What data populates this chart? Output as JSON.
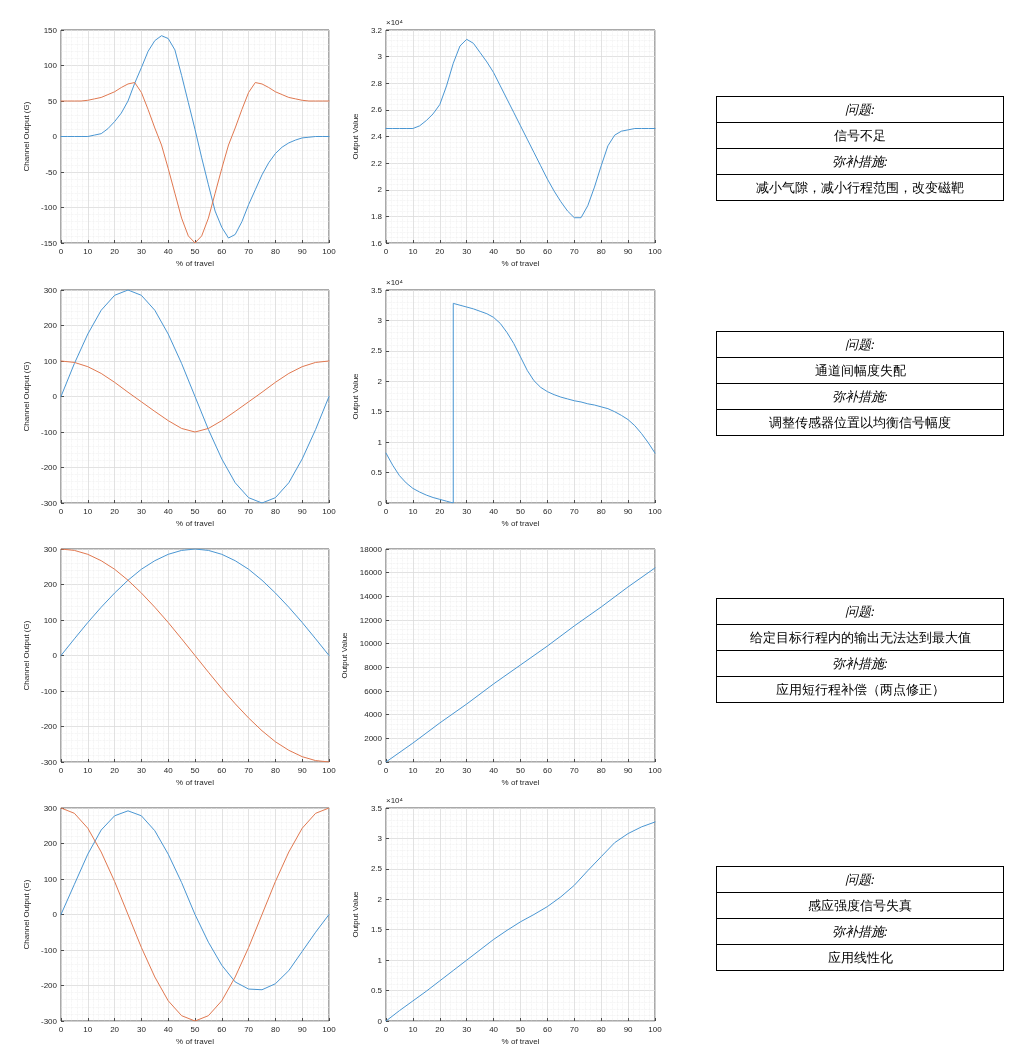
{
  "chart_data": [
    {
      "type": "line",
      "xlabel": "% of travel",
      "ylabel": "Channel Output (G)",
      "x": [
        0,
        2.5,
        5,
        7.5,
        10,
        12.5,
        15,
        17.5,
        20,
        22.5,
        25,
        27.5,
        30,
        32.5,
        35,
        37.5,
        40,
        42.5,
        45,
        47.5,
        50,
        52.5,
        55,
        57.5,
        60,
        62.5,
        65,
        67.5,
        70,
        72.5,
        75,
        77.5,
        80,
        82.5,
        85,
        87.5,
        90,
        92.5,
        95,
        97.5,
        100
      ],
      "series": [
        {
          "color": "#4a96d2",
          "values": [
            0,
            0,
            0,
            0,
            0,
            2,
            4,
            11,
            21,
            33,
            50,
            75,
            97,
            120,
            135,
            142,
            138,
            122,
            86,
            48,
            10,
            -30,
            -68,
            -105,
            -128,
            -143,
            -138,
            -120,
            -96,
            -75,
            -54,
            -37,
            -24,
            -15,
            -9,
            -5,
            -2,
            -1,
            0,
            0,
            0
          ]
        },
        {
          "color": "#e07850",
          "values": [
            50,
            50,
            50,
            50,
            51,
            53,
            55,
            59,
            63,
            69,
            74,
            76,
            62,
            38,
            12,
            -12,
            -45,
            -80,
            -115,
            -140,
            -150,
            -140,
            -115,
            -80,
            -45,
            -12,
            12,
            38,
            62,
            76,
            74,
            69,
            63,
            59,
            55,
            53,
            51,
            50,
            50,
            50,
            50
          ]
        }
      ],
      "xlim": [
        0,
        100
      ],
      "xticks": [
        0,
        10,
        20,
        30,
        40,
        50,
        60,
        70,
        80,
        90,
        100
      ],
      "ylim": [
        -150,
        150
      ],
      "yticks": [
        -150,
        -100,
        -50,
        0,
        50,
        100,
        150
      ],
      "grid": true
    },
    {
      "type": "line",
      "xlabel": "% of travel",
      "ylabel": "Output Value",
      "annotations": [
        "×10⁴"
      ],
      "x": [
        0,
        2.5,
        5,
        7.5,
        10,
        12.5,
        15,
        17.5,
        20,
        22.5,
        25,
        27.5,
        30,
        32.5,
        35,
        37.5,
        40,
        42.5,
        45,
        47.5,
        50,
        52.5,
        55,
        57.5,
        60,
        62.5,
        65,
        67.5,
        70,
        72.5,
        75,
        77.5,
        80,
        82.5,
        85,
        87.5,
        90,
        92.5,
        95,
        97.5,
        100
      ],
      "series": [
        {
          "color": "#4a96d2",
          "values": [
            2.46,
            2.46,
            2.46,
            2.46,
            2.46,
            2.48,
            2.52,
            2.57,
            2.64,
            2.78,
            2.95,
            3.08,
            3.13,
            3.1,
            3.03,
            2.96,
            2.88,
            2.78,
            2.68,
            2.58,
            2.48,
            2.38,
            2.28,
            2.18,
            2.08,
            1.99,
            1.91,
            1.84,
            1.79,
            1.79,
            1.88,
            2.02,
            2.18,
            2.33,
            2.41,
            2.44,
            2.45,
            2.46,
            2.46,
            2.46,
            2.46
          ]
        }
      ],
      "xlim": [
        0,
        100
      ],
      "xticks": [
        0,
        10,
        20,
        30,
        40,
        50,
        60,
        70,
        80,
        90,
        100
      ],
      "ylim": [
        1.6,
        3.2
      ],
      "yticks": [
        1.6,
        1.8,
        2,
        2.2,
        2.4,
        2.6,
        2.8,
        3,
        3.2
      ],
      "grid": true
    },
    {
      "type": "other",
      "annotations": [
        "问题:",
        "信号不足",
        "弥补措施:",
        "减小气隙，减小行程范围，改变磁靶"
      ]
    },
    {
      "type": "line",
      "xlabel": "% of travel",
      "ylabel": "Channel Output (G)",
      "x": [
        0,
        5,
        10,
        15,
        20,
        25,
        30,
        35,
        40,
        45,
        50,
        55,
        60,
        65,
        70,
        75,
        80,
        85,
        90,
        95,
        100
      ],
      "series": [
        {
          "color": "#4a96d2",
          "values": [
            0,
            93,
            176,
            243,
            285,
            300,
            285,
            243,
            176,
            93,
            0,
            -93,
            -176,
            -243,
            -285,
            -300,
            -285,
            -243,
            -176,
            -93,
            0
          ]
        },
        {
          "color": "#e07850",
          "values": [
            100,
            96,
            84,
            65,
            40,
            12,
            -15,
            -42,
            -68,
            -90,
            -100,
            -90,
            -68,
            -42,
            -15,
            12,
            40,
            65,
            84,
            96,
            100
          ]
        }
      ],
      "xlim": [
        0,
        100
      ],
      "xticks": [
        0,
        10,
        20,
        30,
        40,
        50,
        60,
        70,
        80,
        90,
        100
      ],
      "ylim": [
        -300,
        300
      ],
      "yticks": [
        -300,
        -200,
        -100,
        0,
        100,
        200,
        300
      ],
      "grid": true
    },
    {
      "type": "line",
      "xlabel": "% of travel",
      "ylabel": "Output Value",
      "annotations": [
        "×10⁴"
      ],
      "x": [
        0,
        2.5,
        5,
        7.5,
        10,
        12.5,
        15,
        17.5,
        20,
        22.5,
        25,
        25,
        27.5,
        30,
        32.5,
        35,
        37.5,
        40,
        42.5,
        45,
        47.5,
        50,
        52.5,
        55,
        57.5,
        60,
        62.5,
        65,
        67.5,
        70,
        72.5,
        75,
        77.5,
        80,
        82.5,
        85,
        87.5,
        90,
        92.5,
        95,
        97.5,
        100
      ],
      "series": [
        {
          "color": "#4a96d2",
          "values": [
            0.82,
            0.62,
            0.45,
            0.33,
            0.24,
            0.18,
            0.13,
            0.09,
            0.06,
            0.03,
            0,
            3.28,
            3.25,
            3.22,
            3.19,
            3.15,
            3.11,
            3.05,
            2.95,
            2.8,
            2.62,
            2.4,
            2.18,
            2.01,
            1.9,
            1.83,
            1.78,
            1.74,
            1.71,
            1.68,
            1.66,
            1.63,
            1.61,
            1.58,
            1.55,
            1.5,
            1.44,
            1.37,
            1.27,
            1.14,
            0.99,
            0.82
          ]
        }
      ],
      "xlim": [
        0,
        100
      ],
      "xticks": [
        0,
        10,
        20,
        30,
        40,
        50,
        60,
        70,
        80,
        90,
        100
      ],
      "ylim": [
        0,
        3.5
      ],
      "yticks": [
        0,
        0.5,
        1,
        1.5,
        2,
        2.5,
        3,
        3.5
      ],
      "grid": true
    },
    {
      "type": "other",
      "annotations": [
        "问题:",
        "通道间幅度失配",
        "弥补措施:",
        "调整传感器位置以均衡信号幅度"
      ]
    },
    {
      "type": "line",
      "xlabel": "% of travel",
      "ylabel": "Channel Output (G)",
      "x": [
        0,
        5,
        10,
        15,
        20,
        25,
        30,
        35,
        40,
        45,
        50,
        55,
        60,
        65,
        70,
        75,
        80,
        85,
        90,
        95,
        100
      ],
      "series": [
        {
          "color": "#4a96d2",
          "values": [
            0,
            47,
            93,
            136,
            176,
            212,
            243,
            267,
            285,
            296,
            300,
            296,
            285,
            267,
            243,
            212,
            176,
            136,
            93,
            47,
            0
          ]
        },
        {
          "color": "#e07850",
          "values": [
            300,
            296,
            285,
            267,
            243,
            212,
            176,
            136,
            93,
            47,
            0,
            -47,
            -93,
            -136,
            -176,
            -212,
            -243,
            -267,
            -285,
            -296,
            -300
          ]
        }
      ],
      "xlim": [
        0,
        100
      ],
      "xticks": [
        0,
        10,
        20,
        30,
        40,
        50,
        60,
        70,
        80,
        90,
        100
      ],
      "ylim": [
        -300,
        300
      ],
      "yticks": [
        -300,
        -200,
        -100,
        0,
        100,
        200,
        300
      ],
      "grid": true
    },
    {
      "type": "line",
      "xlabel": "% of travel",
      "ylabel": "Output Value",
      "x": [
        0,
        10,
        20,
        30,
        40,
        50,
        60,
        70,
        80,
        90,
        100
      ],
      "series": [
        {
          "color": "#4a96d2",
          "values": [
            0,
            1600,
            3300,
            4900,
            6600,
            8200,
            9800,
            11500,
            13100,
            14800,
            16400
          ]
        }
      ],
      "xlim": [
        0,
        100
      ],
      "xticks": [
        0,
        10,
        20,
        30,
        40,
        50,
        60,
        70,
        80,
        90,
        100
      ],
      "ylim": [
        0,
        18000
      ],
      "yticks": [
        0,
        2000,
        4000,
        6000,
        8000,
        10000,
        12000,
        14000,
        16000,
        18000
      ],
      "grid": true
    },
    {
      "type": "other",
      "annotations": [
        "问题:",
        "给定目标行程内的输出无法达到最大值",
        "弥补措施:",
        "应用短行程补偿（两点修正）"
      ]
    },
    {
      "type": "line",
      "xlabel": "% of travel",
      "ylabel": "Channel Output (G)",
      "x": [
        0,
        5,
        10,
        15,
        20,
        25,
        30,
        35,
        40,
        45,
        50,
        55,
        60,
        65,
        70,
        75,
        80,
        85,
        90,
        95,
        100
      ],
      "series": [
        {
          "color": "#4a96d2",
          "values": [
            0,
            85,
            170,
            238,
            278,
            292,
            278,
            236,
            170,
            90,
            0,
            -78,
            -143,
            -190,
            -210,
            -212,
            -195,
            -158,
            -104,
            -50,
            0
          ]
        },
        {
          "color": "#e07850",
          "values": [
            300,
            285,
            243,
            176,
            93,
            0,
            -93,
            -176,
            -243,
            -285,
            -300,
            -285,
            -243,
            -176,
            -93,
            0,
            93,
            176,
            243,
            285,
            300
          ]
        }
      ],
      "xlim": [
        0,
        100
      ],
      "xticks": [
        0,
        10,
        20,
        30,
        40,
        50,
        60,
        70,
        80,
        90,
        100
      ],
      "ylim": [
        -300,
        300
      ],
      "yticks": [
        -300,
        -200,
        -100,
        0,
        100,
        200,
        300
      ],
      "grid": true
    },
    {
      "type": "line",
      "xlabel": "% of travel",
      "ylabel": "Output Value",
      "annotations": [
        "×10⁴"
      ],
      "x": [
        0,
        5,
        10,
        15,
        20,
        25,
        30,
        35,
        40,
        45,
        50,
        55,
        60,
        65,
        70,
        75,
        80,
        85,
        90,
        95,
        100
      ],
      "series": [
        {
          "color": "#4a96d2",
          "values": [
            0,
            0.17,
            0.33,
            0.49,
            0.66,
            0.83,
            1,
            1.17,
            1.34,
            1.49,
            1.63,
            1.75,
            1.88,
            2.04,
            2.23,
            2.47,
            2.7,
            2.93,
            3.08,
            3.19,
            3.27
          ]
        }
      ],
      "xlim": [
        0,
        100
      ],
      "xticks": [
        0,
        10,
        20,
        30,
        40,
        50,
        60,
        70,
        80,
        90,
        100
      ],
      "ylim": [
        0,
        3.5
      ],
      "yticks": [
        0,
        0.5,
        1,
        1.5,
        2,
        2.5,
        3,
        3.5
      ],
      "grid": true
    },
    {
      "type": "other",
      "annotations": [
        "问题:",
        "感应强度信号失真",
        "弥补措施:",
        "应用线性化"
      ]
    }
  ]
}
